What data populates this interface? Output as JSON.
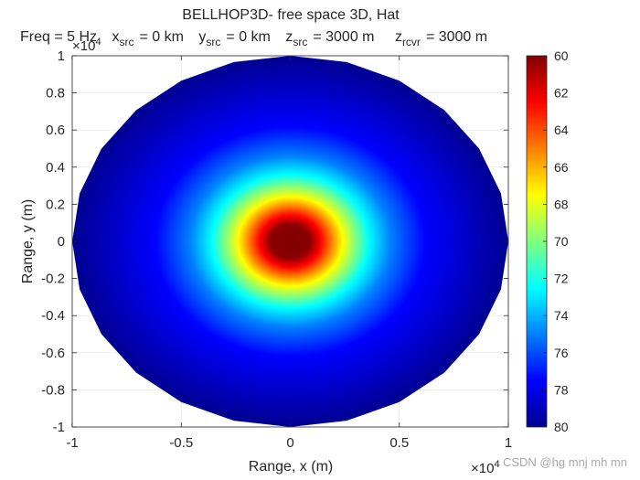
{
  "chart_data": {
    "type": "heatmap",
    "title": "BELLHOP3D- free space 3D, Hat",
    "subtitle": {
      "freq": "Freq = 5 Hz",
      "xsrc_label": "x",
      "xsrc_sub": "src",
      "xsrc_value": "= 0 km",
      "ysrc_label": "y",
      "ysrc_sub": "src",
      "ysrc_value": "= 0 km",
      "zsrc_label": "z",
      "zsrc_sub": "src",
      "zsrc_value": "= 3000 m",
      "zrcvr_label": "z",
      "zrcvr_sub": "rcvr",
      "zrcvr_value": "= 3000 m"
    },
    "xlabel": "Range, x (m)",
    "ylabel": "Range, y (m)",
    "xlim": [
      -10000,
      10000
    ],
    "ylim": [
      -10000,
      10000
    ],
    "x_ticks": [
      "-1",
      "-0.5",
      "0",
      "0.5",
      "1"
    ],
    "y_ticks": [
      "-1",
      "-0.8",
      "-0.6",
      "-0.4",
      "-0.2",
      "0",
      "0.2",
      "0.4",
      "0.6",
      "0.8",
      "1"
    ],
    "x_exponent": "×10",
    "x_exponent_power": "4",
    "y_exponent": "×10",
    "y_exponent_power": "4",
    "grid": true,
    "field": {
      "shape": "disk",
      "radius": 10000,
      "center": [
        0,
        0
      ],
      "center_value": 60,
      "edge_value": 80,
      "description": "Transmission loss increases radially from source at center"
    },
    "colorbar": {
      "min": 60,
      "max": 80,
      "reversed": true,
      "colormap": "jet",
      "ticks": [
        "60",
        "62",
        "64",
        "66",
        "68",
        "70",
        "72",
        "74",
        "76",
        "78",
        "80"
      ]
    }
  },
  "watermark": "CSDN @hg mnj mh mn"
}
